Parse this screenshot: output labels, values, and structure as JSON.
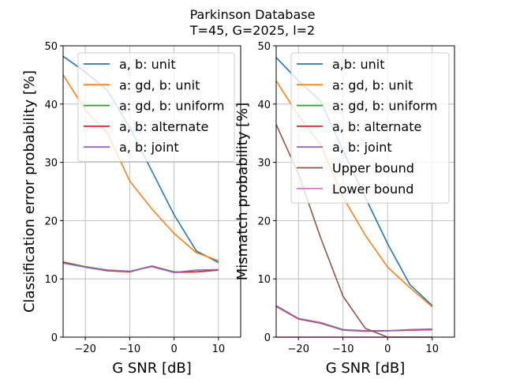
{
  "figure": {
    "title_line1": "Parkinson Database",
    "title_line2": "T=45, G=2025, l=2"
  },
  "chart_data": [
    {
      "type": "line",
      "xlabel": "G SNR [dB]",
      "ylabel": "Classification error probability [%]",
      "xlim": [
        -25,
        15
      ],
      "ylim": [
        0,
        50
      ],
      "xticks": [
        -20,
        -10,
        0,
        10
      ],
      "yticks": [
        0,
        10,
        20,
        30,
        40,
        50
      ],
      "grid": true,
      "legend_position": "upper-right",
      "x": [
        -25,
        -20,
        -15,
        -10,
        -5,
        0,
        5,
        10
      ],
      "series": [
        {
          "name": "a, b: unit",
          "color": "#1f77b4",
          "values": [
            48.2,
            45.5,
            42.3,
            36.0,
            28.5,
            21.0,
            14.8,
            12.8
          ]
        },
        {
          "name": "a: gd, b: unit",
          "color": "#ff7f0e",
          "values": [
            45.0,
            39.0,
            35.0,
            26.8,
            22.0,
            17.8,
            14.5,
            13.1
          ]
        },
        {
          "name": "a: gd, b: uniform",
          "color": "#2ca02c",
          "values": [
            12.9,
            12.1,
            11.5,
            11.3,
            12.2,
            11.2,
            11.2,
            11.5
          ]
        },
        {
          "name": "a, b: alternate",
          "color": "#d62728",
          "values": [
            12.8,
            12.0,
            11.4,
            11.2,
            12.2,
            11.1,
            11.2,
            11.5
          ]
        },
        {
          "name": "a, b: joint",
          "color": "#9467bd",
          "values": [
            12.7,
            12.0,
            11.5,
            11.3,
            12.1,
            11.1,
            11.5,
            11.6
          ]
        }
      ]
    },
    {
      "type": "line",
      "xlabel": "G SNR [dB]",
      "ylabel": "Mismatch probability [%]",
      "xlim": [
        -25,
        15
      ],
      "ylim": [
        0,
        50
      ],
      "xticks": [
        -20,
        -10,
        0,
        10
      ],
      "yticks": [
        0,
        10,
        20,
        30,
        40,
        50
      ],
      "grid": true,
      "legend_position": "upper-right",
      "x": [
        -25,
        -20,
        -15,
        -10,
        -5,
        0,
        5,
        10
      ],
      "series": [
        {
          "name": "a,b: unit",
          "color": "#1f77b4",
          "values": [
            48.0,
            44.0,
            40.5,
            32.0,
            24.0,
            16.0,
            9.0,
            5.4
          ]
        },
        {
          "name": "a: gd, b: unit",
          "color": "#ff7f0e",
          "values": [
            44.0,
            38.0,
            33.0,
            24.0,
            17.5,
            12.0,
            8.5,
            5.2
          ]
        },
        {
          "name": "a: gd, b: uniform",
          "color": "#2ca02c",
          "values": [
            5.3,
            3.2,
            2.5,
            1.3,
            1.1,
            1.1,
            1.2,
            1.3
          ]
        },
        {
          "name": "a, b: alternate",
          "color": "#d62728",
          "values": [
            5.3,
            3.1,
            2.4,
            1.2,
            1.0,
            1.1,
            1.2,
            1.3
          ]
        },
        {
          "name": "a, b: joint",
          "color": "#9467bd",
          "values": [
            5.4,
            3.2,
            2.5,
            1.2,
            1.1,
            1.1,
            1.3,
            1.4
          ]
        },
        {
          "name": "Upper bound",
          "color": "#8c564b",
          "values": [
            36.5,
            28.0,
            17.0,
            7.0,
            1.5,
            0.0,
            0.0,
            0.0
          ]
        },
        {
          "name": "Lower bound",
          "color": "#e377c2",
          "values": [
            0.0,
            0.0,
            0.0,
            0.0,
            0.0,
            0.0,
            0.0,
            0.0
          ]
        }
      ]
    }
  ]
}
